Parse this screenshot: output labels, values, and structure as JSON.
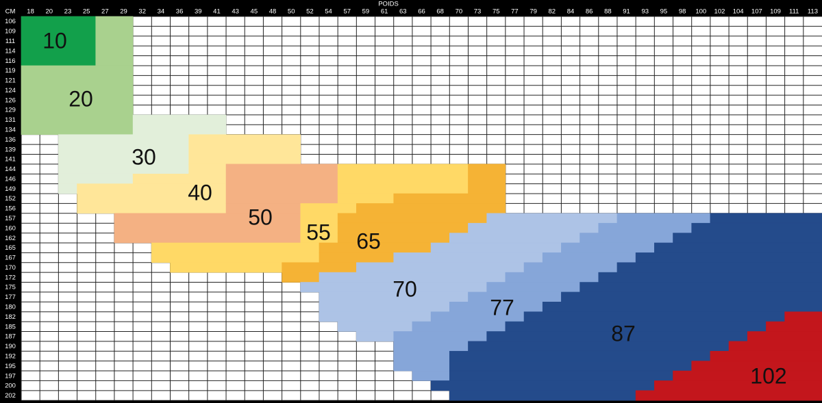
{
  "header": {
    "corner": "CM",
    "title": "POIDS"
  },
  "weights": [
    18,
    20,
    23,
    25,
    27,
    29,
    32,
    34,
    36,
    39,
    41,
    43,
    45,
    48,
    50,
    52,
    54,
    57,
    59,
    61,
    63,
    66,
    68,
    70,
    73,
    75,
    77,
    79,
    82,
    84,
    86,
    88,
    91,
    93,
    95,
    98,
    100,
    102,
    104,
    107,
    109,
    111,
    113
  ],
  "heights": [
    106,
    109,
    111,
    114,
    116,
    119,
    121,
    124,
    126,
    129,
    131,
    134,
    136,
    139,
    141,
    144,
    146,
    149,
    152,
    156,
    157,
    160,
    162,
    165,
    167,
    170,
    172,
    175,
    177,
    180,
    182,
    185,
    187,
    190,
    192,
    195,
    197,
    200,
    202
  ],
  "zones": [
    {
      "label": "10",
      "color": "#12a04b",
      "spans": [
        [
          106,
          116,
          18,
          25
        ]
      ]
    },
    {
      "label": "20",
      "color": "#a9d18e",
      "spans": [
        [
          106,
          116,
          27,
          29
        ],
        [
          119,
          134,
          18,
          29
        ]
      ]
    },
    {
      "label": "30",
      "color": "#e2efda",
      "spans": [
        [
          131,
          134,
          32,
          41
        ],
        [
          136,
          144,
          23,
          36
        ],
        [
          146,
          146,
          23,
          29
        ],
        [
          149,
          149,
          23,
          23
        ]
      ]
    },
    {
      "label": "40",
      "color": "#ffe699",
      "spans": [
        [
          136,
          141,
          39,
          50
        ],
        [
          144,
          144,
          39,
          41
        ],
        [
          146,
          146,
          32,
          41
        ],
        [
          149,
          156,
          25,
          41
        ]
      ]
    },
    {
      "label": "50",
      "color": "#f4b183",
      "spans": [
        [
          144,
          152,
          43,
          54
        ],
        [
          156,
          156,
          43,
          50
        ],
        [
          157,
          162,
          29,
          50
        ]
      ]
    },
    {
      "label": "55",
      "color": "#ffd966",
      "spans": [
        [
          144,
          149,
          57,
          70
        ],
        [
          152,
          152,
          57,
          61
        ],
        [
          156,
          156,
          52,
          57
        ],
        [
          157,
          162,
          52,
          54
        ],
        [
          165,
          167,
          34,
          52
        ],
        [
          170,
          170,
          36,
          48
        ]
      ]
    },
    {
      "label": "65",
      "color": "#f5b335",
      "spans": [
        [
          144,
          149,
          73,
          75
        ],
        [
          152,
          152,
          63,
          75
        ],
        [
          156,
          156,
          59,
          75
        ],
        [
          157,
          157,
          57,
          73
        ],
        [
          160,
          160,
          57,
          70
        ],
        [
          162,
          162,
          57,
          68
        ],
        [
          165,
          165,
          54,
          66
        ],
        [
          167,
          167,
          54,
          61
        ],
        [
          170,
          170,
          50,
          57
        ],
        [
          172,
          172,
          50,
          52
        ]
      ]
    },
    {
      "label": "70",
      "color": "#adc3e6",
      "spans": [
        [
          157,
          157,
          75,
          88
        ],
        [
          160,
          160,
          73,
          86
        ],
        [
          162,
          162,
          70,
          84
        ],
        [
          165,
          165,
          68,
          82
        ],
        [
          167,
          167,
          63,
          79
        ],
        [
          170,
          170,
          59,
          77
        ],
        [
          172,
          172,
          54,
          75
        ],
        [
          175,
          175,
          52,
          73
        ],
        [
          177,
          177,
          54,
          70
        ],
        [
          180,
          180,
          54,
          68
        ],
        [
          182,
          182,
          54,
          66
        ],
        [
          185,
          185,
          57,
          63
        ],
        [
          187,
          187,
          59,
          61
        ]
      ]
    },
    {
      "label": "77",
      "color": "#86a6d9",
      "spans": [
        [
          157,
          157,
          91,
          100
        ],
        [
          160,
          160,
          88,
          98
        ],
        [
          162,
          162,
          86,
          95
        ],
        [
          165,
          165,
          84,
          93
        ],
        [
          167,
          167,
          82,
          91
        ],
        [
          170,
          170,
          79,
          88
        ],
        [
          172,
          172,
          77,
          86
        ],
        [
          175,
          175,
          75,
          84
        ],
        [
          177,
          177,
          73,
          82
        ],
        [
          180,
          180,
          70,
          79
        ],
        [
          182,
          182,
          68,
          77
        ],
        [
          185,
          185,
          66,
          75
        ],
        [
          187,
          187,
          63,
          73
        ],
        [
          190,
          190,
          63,
          70
        ],
        [
          192,
          195,
          63,
          68
        ],
        [
          197,
          197,
          66,
          68
        ]
      ]
    },
    {
      "label": "87",
      "color": "#244b8b",
      "spans": [
        [
          157,
          157,
          102,
          113
        ],
        [
          160,
          160,
          100,
          113
        ],
        [
          162,
          162,
          98,
          113
        ],
        [
          165,
          165,
          95,
          113
        ],
        [
          167,
          167,
          93,
          113
        ],
        [
          170,
          170,
          91,
          113
        ],
        [
          172,
          172,
          88,
          113
        ],
        [
          175,
          175,
          86,
          113
        ],
        [
          177,
          177,
          84,
          113
        ],
        [
          180,
          180,
          82,
          113
        ],
        [
          182,
          182,
          79,
          109
        ],
        [
          185,
          185,
          77,
          107
        ],
        [
          187,
          187,
          75,
          104
        ],
        [
          190,
          190,
          73,
          102
        ],
        [
          192,
          192,
          70,
          100
        ],
        [
          195,
          195,
          70,
          98
        ],
        [
          197,
          197,
          70,
          95
        ],
        [
          200,
          200,
          68,
          93
        ],
        [
          202,
          202,
          70,
          91
        ]
      ]
    },
    {
      "label": "102",
      "color": "#c3161c",
      "spans": [
        [
          182,
          182,
          111,
          113
        ],
        [
          185,
          185,
          109,
          113
        ],
        [
          187,
          187,
          107,
          113
        ],
        [
          190,
          190,
          104,
          113
        ],
        [
          192,
          192,
          102,
          113
        ],
        [
          195,
          195,
          100,
          113
        ],
        [
          197,
          197,
          98,
          113
        ],
        [
          200,
          200,
          95,
          113
        ],
        [
          202,
          202,
          93,
          113
        ]
      ]
    }
  ]
}
